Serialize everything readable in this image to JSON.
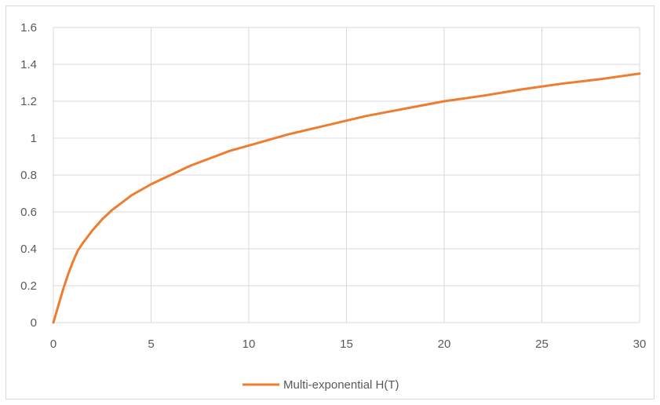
{
  "chart_data": {
    "type": "line",
    "title": "",
    "xlabel": "",
    "ylabel": "",
    "xlim": [
      0,
      30
    ],
    "ylim": [
      0,
      1.6
    ],
    "grid": true,
    "legend_position": "bottom",
    "x_ticks": [
      "0",
      "5",
      "10",
      "15",
      "20",
      "25",
      "30"
    ],
    "y_ticks": [
      "0",
      "0.2",
      "0.4",
      "0.6",
      "0.8",
      "1",
      "1.2",
      "1.4",
      "1.6"
    ],
    "colors": {
      "series": "#ED7D31",
      "grid": "#D9D9D9",
      "text": "#595959",
      "border": "#D9D9D9"
    },
    "series": [
      {
        "name": "Multi-exponential H(T)",
        "x": [
          0,
          0.25,
          0.5,
          0.75,
          1,
          1.25,
          1.5,
          2,
          2.5,
          3,
          4,
          5,
          6,
          7,
          8,
          9,
          10,
          12,
          14,
          16,
          18,
          20,
          22,
          24,
          26,
          28,
          30
        ],
        "y": [
          0,
          0.09,
          0.18,
          0.26,
          0.33,
          0.39,
          0.43,
          0.5,
          0.56,
          0.61,
          0.69,
          0.75,
          0.8,
          0.85,
          0.89,
          0.93,
          0.96,
          1.02,
          1.07,
          1.12,
          1.16,
          1.2,
          1.23,
          1.265,
          1.295,
          1.32,
          1.35
        ]
      }
    ]
  }
}
